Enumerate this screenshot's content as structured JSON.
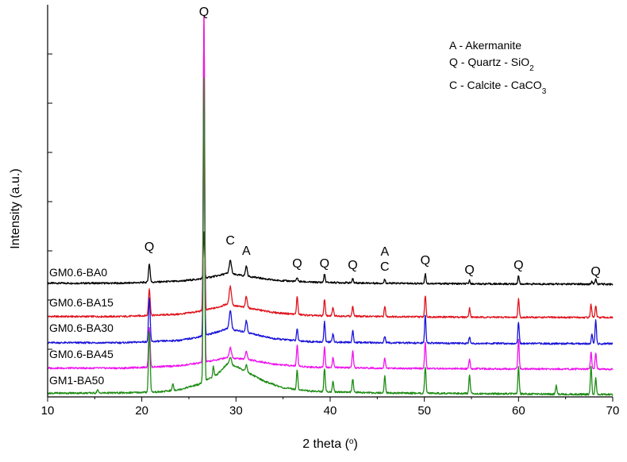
{
  "chart_data": {
    "type": "line",
    "title": "",
    "xlabel": "2 theta (",
    "xlabel_suffix": "o",
    "xlabel_close": ")",
    "ylabel": "Intensity (a.u.)",
    "xlim": [
      10,
      70
    ],
    "xticks": [
      10,
      20,
      30,
      40,
      50,
      60,
      70
    ],
    "xtick_labels": [
      "10",
      "20",
      "30",
      "40",
      "50",
      "60",
      "70"
    ],
    "yaxis_ticks_shown": true,
    "grid": false,
    "legend": {
      "placement": "top-right",
      "entries": [
        {
          "text": "A - Akermanite"
        },
        {
          "text": "Q - Quartz - SiO",
          "sub": "2"
        },
        {
          "text": "C - Calcite - CaCO",
          "sub": "3"
        }
      ]
    },
    "series": [
      {
        "name": "GM0.6-BA0",
        "color": "#000000",
        "baseline": 0.0,
        "background": [
          [
            10,
            0.3
          ],
          [
            18,
            0.3
          ],
          [
            24,
            0.9
          ],
          [
            26,
            1.5
          ],
          [
            28,
            2.5
          ],
          [
            29,
            3.2
          ],
          [
            31,
            2.5
          ],
          [
            34,
            1.2
          ],
          [
            38,
            0.6
          ],
          [
            45,
            0.3
          ],
          [
            55,
            0.1
          ],
          [
            70,
            0.0
          ]
        ],
        "peaks": [
          [
            20.8,
            5.5,
            0.18
          ],
          [
            26.6,
            100,
            0.15
          ],
          [
            29.4,
            4.0,
            0.25
          ],
          [
            31.1,
            3.0,
            0.2
          ],
          [
            36.5,
            1.2,
            0.15
          ],
          [
            39.4,
            2.5,
            0.15
          ],
          [
            42.4,
            1.2,
            0.15
          ],
          [
            45.8,
            1.2,
            0.15
          ],
          [
            50.1,
            3.0,
            0.15
          ],
          [
            54.8,
            1.0,
            0.15
          ],
          [
            60.0,
            2.5,
            0.15
          ],
          [
            67.8,
            0.8,
            0.15
          ],
          [
            68.2,
            1.5,
            0.15
          ]
        ]
      },
      {
        "name": "GM0.6-BA15",
        "color": "#e0141e",
        "baseline": -16.0,
        "background": [
          [
            10,
            0.3
          ],
          [
            18,
            0.3
          ],
          [
            24,
            1.0
          ],
          [
            26,
            1.8
          ],
          [
            28,
            3.0
          ],
          [
            29,
            4.0
          ],
          [
            31,
            3.0
          ],
          [
            34,
            1.5
          ],
          [
            38,
            0.6
          ],
          [
            45,
            0.3
          ],
          [
            55,
            0.1
          ],
          [
            70,
            0.0
          ]
        ],
        "peaks": [
          [
            20.8,
            8.0,
            0.18
          ],
          [
            26.6,
            100,
            0.15
          ],
          [
            29.4,
            5.5,
            0.25
          ],
          [
            31.1,
            3.5,
            0.2
          ],
          [
            36.5,
            5.5,
            0.15
          ],
          [
            39.4,
            5.0,
            0.15
          ],
          [
            40.3,
            2.5,
            0.15
          ],
          [
            42.4,
            3.0,
            0.15
          ],
          [
            45.8,
            3.0,
            0.15
          ],
          [
            50.1,
            6.5,
            0.15
          ],
          [
            54.8,
            2.8,
            0.15
          ],
          [
            60.0,
            5.5,
            0.15
          ],
          [
            67.7,
            4.0,
            0.15
          ],
          [
            68.2,
            3.5,
            0.15
          ]
        ]
      },
      {
        "name": "GM0.6-BA30",
        "color": "#1a14d8",
        "baseline": -31.0,
        "background": [
          [
            10,
            0.3
          ],
          [
            18,
            0.3
          ],
          [
            24,
            1.0
          ],
          [
            26,
            2.0
          ],
          [
            28,
            3.5
          ],
          [
            29,
            4.5
          ],
          [
            31,
            3.5
          ],
          [
            34,
            1.5
          ],
          [
            38,
            0.6
          ],
          [
            45,
            0.3
          ],
          [
            55,
            0.1
          ],
          [
            70,
            0.0
          ]
        ],
        "peaks": [
          [
            20.8,
            13.0,
            0.18
          ],
          [
            26.6,
            100,
            0.15
          ],
          [
            29.4,
            5.5,
            0.25
          ],
          [
            31.1,
            3.5,
            0.2
          ],
          [
            36.5,
            3.5,
            0.15
          ],
          [
            39.4,
            6.0,
            0.15
          ],
          [
            40.3,
            2.5,
            0.15
          ],
          [
            42.4,
            3.5,
            0.15
          ],
          [
            45.8,
            2.0,
            0.15
          ],
          [
            50.1,
            8.5,
            0.15
          ],
          [
            54.8,
            2.0,
            0.15
          ],
          [
            60.0,
            6.5,
            0.15
          ],
          [
            67.8,
            3.0,
            0.15
          ],
          [
            68.2,
            7.0,
            0.15
          ]
        ]
      },
      {
        "name": "GM0.6-BA45",
        "color": "#ee14ee",
        "baseline": -46.0,
        "background": [
          [
            10,
            0.3
          ],
          [
            18,
            0.3
          ],
          [
            24,
            1.0
          ],
          [
            26,
            1.8
          ],
          [
            28,
            2.8
          ],
          [
            29,
            3.5
          ],
          [
            31,
            3.0
          ],
          [
            34,
            1.5
          ],
          [
            38,
            0.6
          ],
          [
            45,
            0.3
          ],
          [
            55,
            0.1
          ],
          [
            70,
            0.0
          ]
        ],
        "peaks": [
          [
            20.8,
            12.0,
            0.18
          ],
          [
            26.6,
            150,
            0.15
          ],
          [
            29.4,
            3.0,
            0.25
          ],
          [
            31.1,
            2.5,
            0.2
          ],
          [
            36.5,
            6.5,
            0.15
          ],
          [
            39.4,
            6.0,
            0.15
          ],
          [
            40.3,
            3.0,
            0.15
          ],
          [
            42.4,
            5.0,
            0.15
          ],
          [
            45.8,
            3.0,
            0.15
          ],
          [
            50.1,
            8.0,
            0.15
          ],
          [
            54.8,
            3.0,
            0.15
          ],
          [
            60.0,
            9.0,
            0.15
          ],
          [
            67.7,
            5.0,
            0.15
          ],
          [
            68.2,
            5.0,
            0.15
          ]
        ]
      },
      {
        "name": "GM1-BA50",
        "color": "#1e8c14",
        "baseline": -61.0,
        "background": [
          [
            10,
            0.4
          ],
          [
            18,
            0.5
          ],
          [
            22,
            0.8
          ],
          [
            24,
            1.5
          ],
          [
            26,
            3.0
          ],
          [
            28,
            6.0
          ],
          [
            29,
            9.0
          ],
          [
            30,
            8.5
          ],
          [
            31,
            7.0
          ],
          [
            33,
            4.0
          ],
          [
            35,
            2.0
          ],
          [
            38,
            1.0
          ],
          [
            45,
            0.5
          ],
          [
            55,
            0.3
          ],
          [
            70,
            0.0
          ]
        ],
        "peaks": [
          [
            15.3,
            1.0,
            0.15
          ],
          [
            20.8,
            26.0,
            0.18
          ],
          [
            23.3,
            2.0,
            0.15
          ],
          [
            26.6,
            130,
            0.15
          ],
          [
            27.6,
            3.0,
            0.15
          ],
          [
            29.4,
            2.5,
            0.25
          ],
          [
            31.1,
            2.0,
            0.2
          ],
          [
            36.5,
            6.0,
            0.15
          ],
          [
            39.4,
            7.0,
            0.15
          ],
          [
            40.3,
            3.0,
            0.15
          ],
          [
            42.4,
            4.0,
            0.15
          ],
          [
            45.8,
            5.0,
            0.15
          ],
          [
            50.1,
            8.0,
            0.15
          ],
          [
            54.8,
            5.5,
            0.15
          ],
          [
            60.0,
            8.0,
            0.15
          ],
          [
            64.0,
            2.5,
            0.15
          ],
          [
            67.7,
            8.5,
            0.15
          ],
          [
            68.2,
            5.0,
            0.15
          ]
        ]
      }
    ],
    "series_labels": [
      "GM0.6-BA0",
      "GM0.6-BA15",
      "GM0.6-BA30",
      "GM0.6-BA45",
      "GM1-BA50"
    ],
    "peak_annotations": [
      {
        "text": "Q",
        "x": 20.8,
        "series": "GM0.6-BA0"
      },
      {
        "text": "Q",
        "x": 26.6,
        "series": "top"
      },
      {
        "text": "C",
        "x": 29.4,
        "series": "GM0.6-BA0"
      },
      {
        "text": "A",
        "x": 31.1,
        "series": "GM0.6-BA0"
      },
      {
        "text": "Q",
        "x": 36.5,
        "series": "GM0.6-BA0"
      },
      {
        "text": "Q",
        "x": 39.4,
        "series": "GM0.6-BA0"
      },
      {
        "text": "Q",
        "x": 42.4,
        "series": "GM0.6-BA0"
      },
      {
        "text": "A",
        "x": 45.8,
        "series": "GM0.6-BA0",
        "stack": 2
      },
      {
        "text": "C",
        "x": 45.8,
        "series": "GM0.6-BA0",
        "stack": 1
      },
      {
        "text": "Q",
        "x": 50.1,
        "series": "GM0.6-BA0"
      },
      {
        "text": "Q",
        "x": 54.8,
        "series": "GM0.6-BA0"
      },
      {
        "text": "Q",
        "x": 60.0,
        "series": "GM0.6-BA0"
      },
      {
        "text": "Q",
        "x": 68.2,
        "series": "GM0.6-BA0"
      }
    ]
  }
}
